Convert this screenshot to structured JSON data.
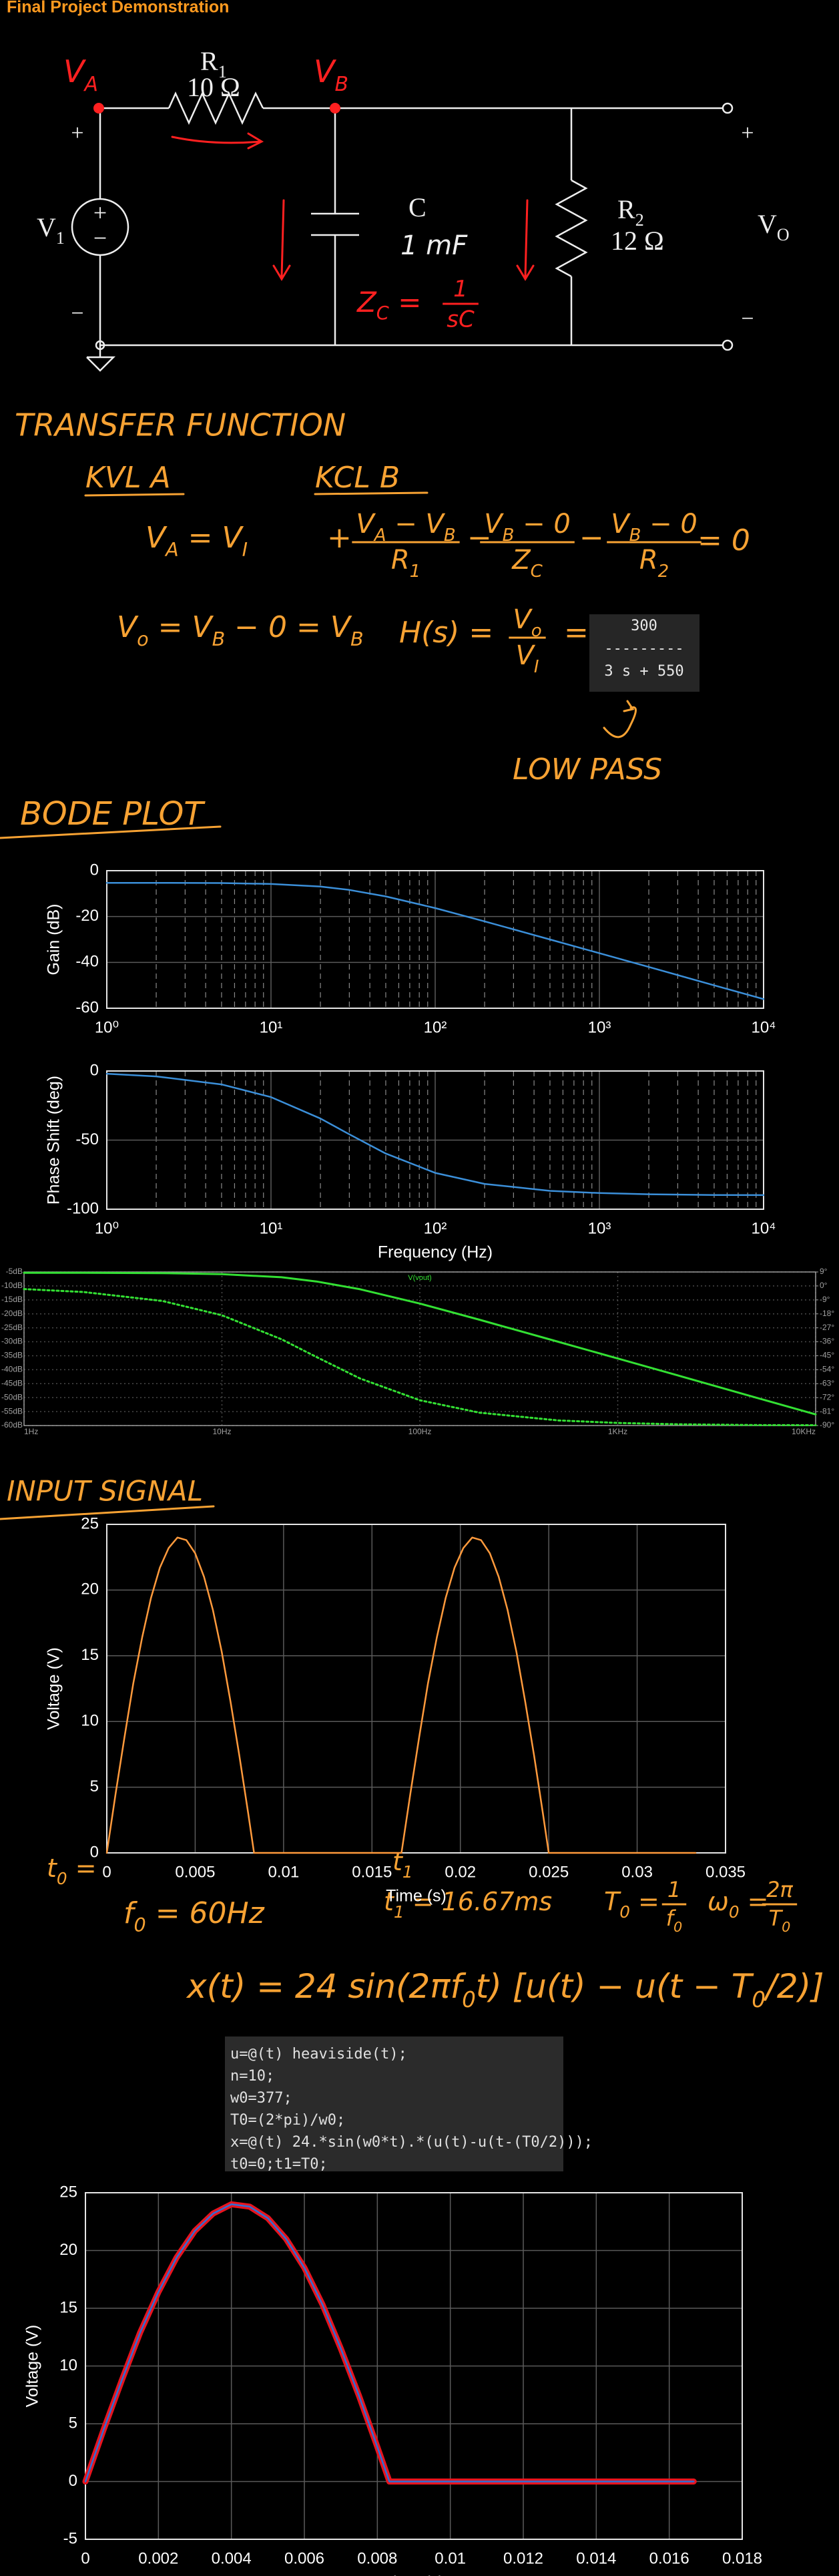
{
  "header": {
    "title": "Final Project Demonstration"
  },
  "circuit": {
    "node_a": [
      "V",
      {
        "sub": "A"
      }
    ],
    "node_b": [
      "V",
      {
        "sub": "B"
      }
    ],
    "r1": [
      "R",
      {
        "sub": "1"
      }
    ],
    "r1_value": "10 Ω",
    "source": [
      "V",
      {
        "sub": "1"
      }
    ],
    "source_plus": "+",
    "source_minus": "−",
    "in_plus": "+",
    "in_minus": "−",
    "c": "C",
    "c_value": "1 mF",
    "zc_lhs": [
      "Z",
      {
        "sub": "C"
      },
      " ="
    ],
    "zc_frac": {
      "num": [
        "1"
      ],
      "den": [
        "sC"
      ]
    },
    "r2": [
      "R",
      {
        "sub": "2"
      }
    ],
    "r2_value": "12 Ω",
    "out": [
      "V",
      {
        "sub": "O"
      }
    ],
    "out_plus": "+",
    "out_minus": "−"
  },
  "transfer_function": {
    "heading": "TRANSFER FUNCTION",
    "kvl_heading": "KVL A",
    "kcl_heading": "KCL B",
    "kvl_eq": [
      "V",
      {
        "sub": "A"
      },
      " = V",
      {
        "sub": "I"
      }
    ],
    "kcl_plus": "+",
    "kcl_term1": {
      "num": [
        "V",
        {
          "sub": "A"
        },
        " − V",
        {
          "sub": "B"
        }
      ],
      "den": [
        "R",
        {
          "sub": "1"
        }
      ]
    },
    "kcl_minus1": "−",
    "kcl_term2": {
      "num": [
        "V",
        {
          "sub": "B"
        },
        " − 0"
      ],
      "den": [
        "Z",
        {
          "sub": "C"
        }
      ]
    },
    "kcl_minus2": "−",
    "kcl_term3": {
      "num": [
        "V",
        {
          "sub": "B"
        },
        " − 0"
      ],
      "den": [
        "R",
        {
          "sub": "2"
        }
      ]
    },
    "kcl_equals": "= 0",
    "vo_eq": [
      "V",
      {
        "sub": "o"
      },
      " = V",
      {
        "sub": "B"
      },
      " − 0 = V",
      {
        "sub": "B"
      }
    ],
    "h_lhs": "H(s) =",
    "h_frac": {
      "num": [
        "V",
        {
          "sub": "o"
        }
      ],
      "den": [
        "V",
        {
          "sub": "I"
        }
      ]
    },
    "h_eq": "=",
    "tf_output": [
      "300",
      "---------",
      "3 s + 550"
    ],
    "annotation": "LOW PASS"
  },
  "bode_heading": "BODE PLOT",
  "input_heading": "INPUT SIGNAL",
  "input_notes": {
    "t0": [
      "t",
      {
        "sub": "0"
      },
      " ="
    ],
    "t1": [
      "t",
      {
        "sub": "1"
      }
    ],
    "f0": [
      "f",
      {
        "sub": "0"
      },
      " = 60Hz"
    ],
    "t1_value": [
      "t",
      {
        "sub": "1"
      },
      " = 16.67ms"
    ],
    "T0_label": [
      "T",
      {
        "sub": "0"
      },
      " ="
    ],
    "T0_frac": {
      "num": [
        "1"
      ],
      "den": [
        "f",
        {
          "sub": "0"
        }
      ]
    },
    "w0_label": [
      "ω",
      {
        "sub": "0"
      },
      " ="
    ],
    "w0_frac": {
      "num": [
        "2π"
      ],
      "den": [
        "T",
        {
          "sub": "0"
        }
      ]
    },
    "signal": [
      "x(t) = 24 sin(2πf",
      {
        "sub": "0"
      },
      "t) [u(t) − u(t − T",
      {
        "sub": "0"
      },
      "/2)]"
    ]
  },
  "code": [
    "u=@(t) heaviside(t);",
    "n=10;",
    "w0=377;",
    "T0=(2*pi)/w0;",
    "x=@(t) 24.*sin(w0*t).*(u(t)-u(t-(T0/2)));",
    "t0=0;t1=T0;"
  ],
  "chart_data": [
    {
      "type": "line",
      "ylabel": "Gain (dB)",
      "xscale": "log",
      "grid": true,
      "minor_grid": true,
      "color": "#3b8fd9",
      "x": [
        1,
        2,
        5,
        10,
        20,
        30,
        50,
        100,
        200,
        500,
        1000,
        2000,
        5000,
        10000
      ],
      "values": [
        -5.3,
        -5.3,
        -5.4,
        -5.8,
        -6.9,
        -8.4,
        -11.2,
        -16.3,
        -22.1,
        -30.0,
        -36.0,
        -42.0,
        -50.0,
        -56.0
      ],
      "xlim": [
        1,
        10000
      ],
      "ylim": [
        -60,
        0
      ],
      "xticks": [
        {
          "value": 1,
          "label": "10⁰"
        },
        {
          "value": 10,
          "label": "10¹"
        },
        {
          "value": 100,
          "label": "10²"
        },
        {
          "value": 1000,
          "label": "10³"
        },
        {
          "value": 10000,
          "label": "10⁴"
        }
      ],
      "yticks": [
        -60,
        -40,
        -20,
        0
      ]
    },
    {
      "type": "line",
      "ylabel": "Phase Shift (deg)",
      "xlabel": "Frequency (Hz)",
      "xscale": "log",
      "grid": true,
      "minor_grid": true,
      "color": "#3b8fd9",
      "x": [
        1,
        2,
        5,
        10,
        20,
        30,
        50,
        100,
        200,
        500,
        1000,
        2000,
        5000,
        10000
      ],
      "values": [
        -2.0,
        -3.9,
        -9.7,
        -18.9,
        -34.4,
        -45.8,
        -59.7,
        -73.7,
        -81.7,
        -86.7,
        -88.3,
        -89.2,
        -89.7,
        -89.8
      ],
      "xlim": [
        1,
        10000
      ],
      "ylim": [
        -100,
        0
      ],
      "xticks": [
        {
          "value": 1,
          "label": "10⁰"
        },
        {
          "value": 10,
          "label": "10¹"
        },
        {
          "value": 100,
          "label": "10²"
        },
        {
          "value": 1000,
          "label": "10³"
        },
        {
          "value": 10000,
          "label": "10⁴"
        }
      ],
      "yticks": [
        -100,
        -50,
        0
      ]
    },
    {
      "type": "line",
      "title": "V(vout)",
      "xscale": "log",
      "grid": true,
      "minor_grid": false,
      "x": [
        1,
        2,
        5,
        10,
        20,
        30,
        50,
        100,
        200,
        500,
        1000,
        2000,
        5000,
        10000
      ],
      "series": [
        {
          "name": "V(vout)",
          "color": "#33e033",
          "line_style": "solid",
          "values": [
            -5.3,
            -5.3,
            -5.4,
            -5.8,
            -6.9,
            -8.4,
            -11.2,
            -16.3,
            -22.1,
            -30.0,
            -36.0,
            -42.0,
            -50.0,
            -56.0
          ]
        },
        {
          "color": "#33e033",
          "line_style": "dotted",
          "axis": "y2",
          "values": [
            -2.0,
            -3.9,
            -9.7,
            -18.9,
            -34.4,
            -45.8,
            -59.7,
            -73.7,
            -81.7,
            -86.7,
            -88.3,
            -89.2,
            -89.7,
            -89.8
          ]
        }
      ],
      "xlim": [
        1,
        10000
      ],
      "ylim": [
        -60,
        -5
      ],
      "y2lim": [
        -90,
        9
      ],
      "xticks": [
        {
          "value": 1,
          "label": "1Hz"
        },
        {
          "value": 10,
          "label": "10Hz"
        },
        {
          "value": 100,
          "label": "100Hz"
        },
        {
          "value": 1000,
          "label": "1KHz"
        },
        {
          "value": 10000,
          "label": "10KHz"
        }
      ],
      "yticks": [
        {
          "value": -5,
          "label": "-5dB"
        },
        {
          "value": -10,
          "label": "-10dB"
        },
        {
          "value": -15,
          "label": "-15dB"
        },
        {
          "value": -20,
          "label": "-20dB"
        },
        {
          "value": -25,
          "label": "-25dB"
        },
        {
          "value": -30,
          "label": "-30dB"
        },
        {
          "value": -35,
          "label": "-35dB"
        },
        {
          "value": -40,
          "label": "-40dB"
        },
        {
          "value": -45,
          "label": "-45dB"
        },
        {
          "value": -50,
          "label": "-50dB"
        },
        {
          "value": -55,
          "label": "-55dB"
        },
        {
          "value": -60,
          "label": "-60dB"
        }
      ],
      "y2ticks": [
        {
          "value": 9,
          "label": "9°"
        },
        {
          "value": 0,
          "label": "0°"
        },
        {
          "value": -9,
          "label": "-9°"
        },
        {
          "value": -18,
          "label": "-18°"
        },
        {
          "value": -27,
          "label": "-27°"
        },
        {
          "value": -36,
          "label": "-36°"
        },
        {
          "value": -45,
          "label": "-45°"
        },
        {
          "value": -54,
          "label": "-54°"
        },
        {
          "value": -63,
          "label": "-63°"
        },
        {
          "value": -72,
          "label": "-72°"
        },
        {
          "value": -81,
          "label": "-81°"
        },
        {
          "value": -90,
          "label": "-90°"
        }
      ]
    },
    {
      "type": "line",
      "ylabel": "Voltage (V)",
      "xlabel": "Time (s)",
      "grid": true,
      "color": "#ff9a3c",
      "x": [
        0,
        0.0005,
        0.001,
        0.0015,
        0.002,
        0.0025,
        0.003,
        0.0035,
        0.004,
        0.0045,
        0.005,
        0.0055,
        0.006,
        0.0065,
        0.007,
        0.0075,
        0.008,
        0.00833,
        0.01667,
        0.01717,
        0.01767,
        0.01817,
        0.01867,
        0.01917,
        0.01967,
        0.02017,
        0.02067,
        0.02117,
        0.02167,
        0.02217,
        0.02267,
        0.02317,
        0.02367,
        0.02417,
        0.02467,
        0.025,
        0.0333
      ],
      "values": [
        0,
        4.5,
        8.8,
        12.9,
        16.4,
        19.4,
        21.7,
        23.2,
        24.0,
        23.8,
        22.8,
        21.0,
        18.5,
        15.3,
        11.5,
        7.4,
        3.0,
        0,
        0,
        4.5,
        8.8,
        12.9,
        16.4,
        19.4,
        21.7,
        23.2,
        24.0,
        23.8,
        22.8,
        21.0,
        18.5,
        15.3,
        11.5,
        7.4,
        3.0,
        0,
        0
      ],
      "xlim": [
        0,
        0.035
      ],
      "ylim": [
        0,
        25
      ],
      "xticks": [
        0,
        0.005,
        0.01,
        0.015,
        0.02,
        0.025,
        0.03,
        0.035
      ],
      "yticks": [
        0,
        5,
        10,
        15,
        20,
        25
      ]
    },
    {
      "type": "line",
      "ylabel": "Voltage (V)",
      "xlabel": "Time (s)",
      "grid": true,
      "x": [
        0,
        0.0005,
        0.001,
        0.0015,
        0.002,
        0.0025,
        0.003,
        0.0035,
        0.004,
        0.0045,
        0.005,
        0.0055,
        0.006,
        0.0065,
        0.007,
        0.0075,
        0.008,
        0.00833,
        0.01667
      ],
      "series": [
        {
          "color": "#e8141e",
          "values": [
            0,
            4.5,
            8.8,
            12.9,
            16.4,
            19.4,
            21.7,
            23.2,
            24.0,
            23.8,
            22.8,
            21.0,
            18.5,
            15.3,
            11.5,
            7.4,
            3.0,
            0,
            0
          ]
        },
        {
          "color": "#2f6fd6",
          "values": [
            0,
            4.5,
            8.8,
            12.9,
            16.4,
            19.4,
            21.7,
            23.2,
            24.0,
            23.8,
            22.8,
            21.0,
            18.5,
            15.3,
            11.5,
            7.4,
            3.0,
            0,
            0
          ]
        }
      ],
      "xlim": [
        0,
        0.018
      ],
      "ylim": [
        -5,
        25
      ],
      "xticks": [
        0,
        0.002,
        0.004,
        0.006,
        0.008,
        0.01,
        0.012,
        0.014,
        0.016,
        0.018
      ],
      "yticks": [
        -5,
        0,
        5,
        10,
        15,
        20,
        25
      ]
    }
  ]
}
